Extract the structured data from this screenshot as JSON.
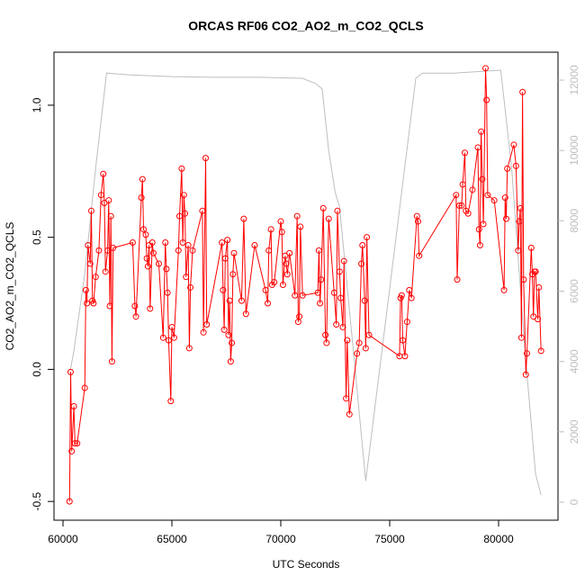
{
  "chart_data": {
    "type": "line",
    "title": "ORCAS RF06 CO2_AO2_m_CO2_QCLS",
    "x_label": "UTC Seconds",
    "y_label": "CO2_AO2_m_CO2_QCLS",
    "xlim": [
      59587,
      82727
    ],
    "xticks": [
      60000,
      65000,
      70000,
      75000,
      80000
    ],
    "ylim": [
      -0.571,
      1.2007
    ],
    "yticks": [
      -0.5,
      {
        "value": 0,
        "label": "0.0"
      },
      0.5,
      {
        "value": 1,
        "label": "1.0"
      }
    ],
    "y2lim": [
      -512,
      12793
    ],
    "y2ticks": [
      0,
      2000,
      4000,
      6000,
      8000,
      10000,
      12000
    ],
    "series": [
      {
        "color": "#bebebe",
        "axis": "y2",
        "markers": false,
        "x": [
          60350,
          60500,
          61000,
          61500,
          62000,
          63000,
          65000,
          67000,
          69000,
          71000,
          71600,
          71900,
          72200,
          72500,
          72700,
          73900,
          76200,
          76500,
          78000,
          80100,
          80600,
          81200,
          81700,
          81950
        ],
        "values": [
          3800,
          4300,
          6500,
          9500,
          12200,
          12150,
          12100,
          12080,
          12080,
          12050,
          11900,
          11750,
          10000,
          8800,
          8400,
          600,
          12050,
          12200,
          12200,
          12280,
          9500,
          4400,
          800,
          200
        ]
      },
      {
        "color": "#ff0000",
        "axis": "y",
        "markers": true,
        "x": [
          60300,
          60350,
          60400,
          60500,
          60550,
          60650,
          61000,
          61050,
          61100,
          61150,
          61250,
          61300,
          61350,
          61400,
          61500,
          61650,
          61750,
          61850,
          61900,
          61950,
          62050,
          62100,
          62150,
          62200,
          62250,
          62300,
          63200,
          63300,
          63350,
          63600,
          63650,
          63700,
          63800,
          63850,
          63900,
          63950,
          64000,
          64100,
          64150,
          64400,
          64600,
          64700,
          64750,
          64800,
          64850,
          64950,
          65000,
          65100,
          65300,
          65350,
          65450,
          65500,
          65550,
          65600,
          65650,
          65750,
          65800,
          65850,
          65950,
          66400,
          66450,
          66550,
          66600,
          67300,
          67350,
          67400,
          67450,
          67550,
          67600,
          67650,
          67700,
          67750,
          67800,
          67850,
          68200,
          68300,
          68400,
          68800,
          69300,
          69400,
          69450,
          69550,
          69600,
          69700,
          70000,
          70050,
          70100,
          70200,
          70250,
          70300,
          70400,
          70650,
          70750,
          70800,
          70850,
          70900,
          71000,
          71700,
          71750,
          71800,
          71850,
          71950,
          72050,
          72100,
          72200,
          72450,
          72550,
          72600,
          72700,
          72750,
          72850,
          72900,
          73000,
          73050,
          73150,
          73500,
          73600,
          73700,
          73750,
          73850,
          73900,
          73950,
          74050,
          75450,
          75500,
          75550,
          75600,
          75700,
          75800,
          75900,
          76000,
          76250,
          76300,
          76350,
          78050,
          78100,
          78200,
          78300,
          78350,
          78450,
          78500,
          78600,
          78800,
          79050,
          79100,
          79150,
          79200,
          79250,
          79300,
          79400,
          79450,
          79500,
          79800,
          80250,
          80300,
          80350,
          80400,
          80700,
          80800,
          80900,
          80950,
          81000,
          81050,
          81100,
          81150,
          81250,
          81300,
          81500,
          81550,
          81600,
          81650,
          81700,
          81800,
          81850,
          81950
        ],
        "values": [
          -0.5,
          -0.01,
          -0.31,
          -0.14,
          -0.28,
          -0.28,
          -0.07,
          0.3,
          0.25,
          0.47,
          0.4,
          0.6,
          0.26,
          0.25,
          0.35,
          0.45,
          0.66,
          0.74,
          0.63,
          0.37,
          0.45,
          0.64,
          0.24,
          0.58,
          0.03,
          0.46,
          0.48,
          0.24,
          0.2,
          0.65,
          0.72,
          0.53,
          0.51,
          0.42,
          0.39,
          0.47,
          0.23,
          0.48,
          0.44,
          0.4,
          0.12,
          0.48,
          0.38,
          0.29,
          0.11,
          -0.12,
          0.16,
          0.12,
          0.45,
          0.58,
          0.76,
          0.48,
          0.66,
          0.59,
          0.35,
          0.47,
          0.08,
          0.31,
          0.45,
          0.6,
          0.14,
          0.8,
          0.17,
          0.48,
          0.3,
          0.15,
          0.42,
          0.49,
          0.13,
          0.26,
          0.03,
          0.1,
          0.36,
          0.44,
          0.26,
          0.57,
          0.21,
          0.47,
          0.3,
          0.25,
          0.45,
          0.53,
          0.32,
          0.33,
          0.56,
          0.52,
          0.32,
          0.43,
          0.4,
          0.36,
          0.44,
          0.28,
          0.58,
          0.18,
          0.2,
          0.54,
          0.28,
          0.29,
          0.45,
          0.25,
          0.34,
          0.61,
          0.13,
          0.1,
          0.57,
          0.29,
          0.17,
          0.6,
          0.37,
          0.27,
          0.16,
          0.41,
          -0.11,
          0.11,
          -0.17,
          0.06,
          0.1,
          0.4,
          0.47,
          0.26,
          0.08,
          0.5,
          0.13,
          0.05,
          0.27,
          0.28,
          0.11,
          0.05,
          0.18,
          0.3,
          0.27,
          0.58,
          0.56,
          0.43,
          0.66,
          0.34,
          0.62,
          0.62,
          0.7,
          0.82,
          0.6,
          0.59,
          0.68,
          0.84,
          0.53,
          0.47,
          0.9,
          0.72,
          0.55,
          1.14,
          1.02,
          0.66,
          0.64,
          0.3,
          0.65,
          0.57,
          0.76,
          0.85,
          0.77,
          0.45,
          0.56,
          0.61,
          0.12,
          1.05,
          0.34,
          -0.02,
          0.06,
          0.46,
          0.36,
          0.2,
          0.37,
          0.37,
          0.19,
          0.31,
          0.07
        ]
      }
    ]
  }
}
